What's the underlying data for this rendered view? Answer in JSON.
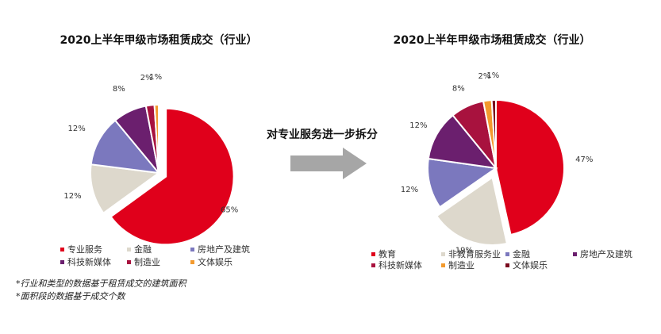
{
  "chart_data": [
    {
      "type": "pie",
      "title": "2020上半年甲级市场租赁成交（行业）",
      "series": [
        {
          "label": "专业服务",
          "value": 65,
          "display": "65%",
          "color": "#E0001B"
        },
        {
          "label": "金融",
          "value": 12,
          "display": "12%",
          "color": "#DDD8CC"
        },
        {
          "label": "房地产及建筑",
          "value": 12,
          "display": "12%",
          "color": "#7B78BE"
        },
        {
          "label": "科技新媒体",
          "value": 8,
          "display": "8%",
          "color": "#6B1F6E"
        },
        {
          "label": "制造业",
          "value": 2,
          "display": "2%",
          "color": "#A8123E"
        },
        {
          "label": "文体娱乐",
          "value": 1,
          "display": "1%",
          "color": "#F39A2E"
        }
      ],
      "exploded": "专业服务"
    },
    {
      "type": "pie",
      "title": "2020上半年甲级市场租赁成交（行业）",
      "series": [
        {
          "label": "教育",
          "value": 47,
          "display": "47%",
          "color": "#E0001B"
        },
        {
          "label": "非教育服务业",
          "value": 19,
          "display": "19%",
          "color": "#DDD8CC"
        },
        {
          "label": "金融",
          "value": 12,
          "display": "12%",
          "color": "#7B78BE"
        },
        {
          "label": "房地产及建筑",
          "value": 12,
          "display": "12%",
          "color": "#6B1F6E"
        },
        {
          "label": "科技新媒体",
          "value": 8,
          "display": "8%",
          "color": "#A8123E"
        },
        {
          "label": "制造业",
          "value": 2,
          "display": "2%",
          "color": "#F39A2E"
        },
        {
          "label": "文体娱乐",
          "value": 1,
          "display": "1%",
          "color": "#7A0A1E"
        }
      ],
      "exploded": "非教育服务业"
    }
  ],
  "arrow_label": "对专业服务进一步拆分",
  "notes": [
    "*行业和类型的数据基于租赁成交的建筑面积",
    "*面积段的数据基于成交个数"
  ],
  "colors": {
    "arrow": "#A6A6A6"
  }
}
